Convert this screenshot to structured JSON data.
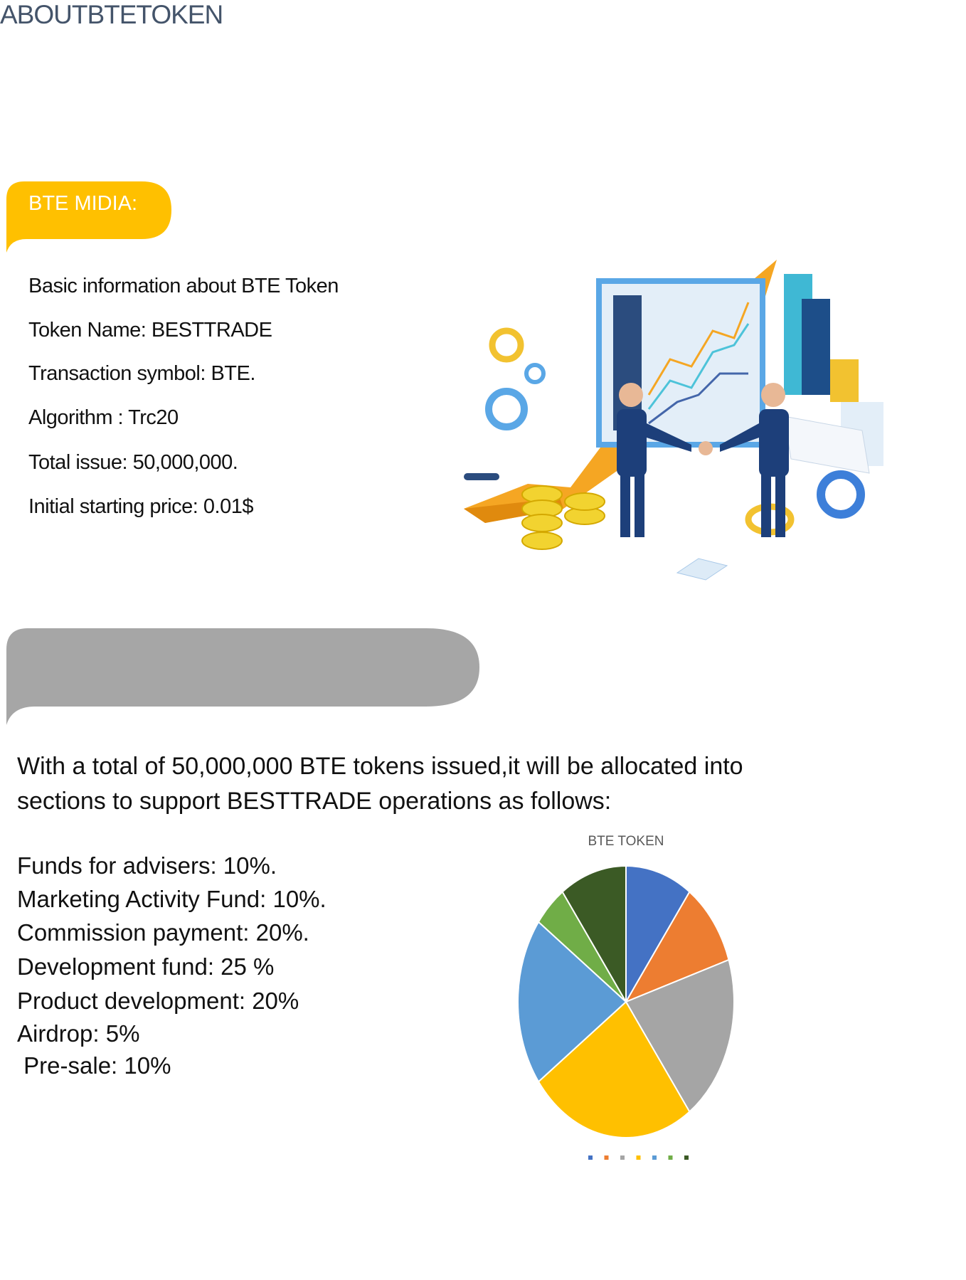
{
  "header": {
    "title": "ABOUTBTETOKEN"
  },
  "section1": {
    "tab_label": "BTE MIDIA:",
    "tab_color": "#FFC000",
    "lines": [
      "Basic information about BTE Token",
      "Token Name: BESTTRADE",
      "Transaction symbol: BTE.",
      "Algorithm : Trc20",
      "Total issue: 50,000,000.",
      "Initial starting price: 0.01$"
    ]
  },
  "section2": {
    "tab_color": "#A6A6A6",
    "paragraph": [
      "With a total of 50,000,000 BTE tokens issued,it will be allocated into",
      "sections to support BESTTRADE operations as follows:"
    ],
    "allocations": [
      "Funds for advisers: 10%.",
      "Marketing Activity Fund: 10%.",
      "Commission payment: 20%.",
      "Development fund: 25 %",
      "Product development: 20%",
      "Airdrop: 5%",
      " Pre-sale: 10%"
    ]
  },
  "chart_data": {
    "type": "pie",
    "title": "BTE TOKEN",
    "values": [
      10,
      10,
      20,
      25,
      20,
      5,
      10
    ],
    "colors": [
      "#4472C4",
      "#ED7D31",
      "#A5A5A5",
      "#FFC000",
      "#5B9BD5",
      "#70AD47",
      "#3B5A25"
    ],
    "start": "top",
    "direction": "clockwise",
    "legend": "bottom",
    "legend_labels_visible": false
  }
}
